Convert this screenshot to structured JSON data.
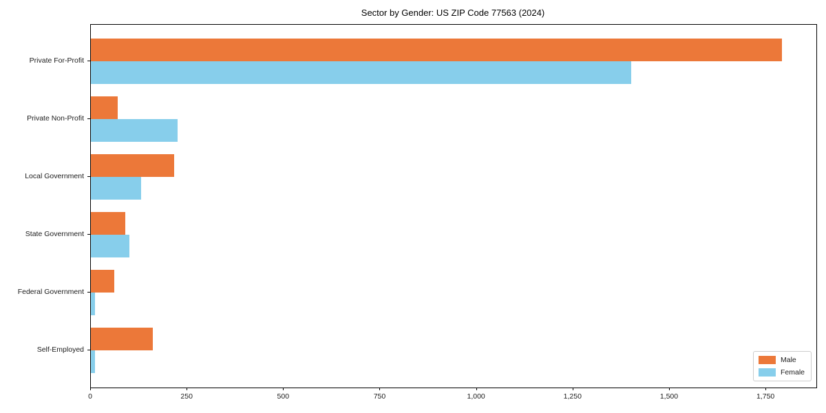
{
  "chart_data": {
    "type": "bar",
    "orientation": "horizontal",
    "title": "Sector by Gender: US ZIP Code 77563 (2024)",
    "categories": [
      "Private For-Profit",
      "Private Non-Profit",
      "Local Government",
      "State Government",
      "Federal Government",
      "Self-Employed"
    ],
    "series": [
      {
        "name": "Male",
        "color": "#ec7839",
        "values": [
          1790,
          70,
          215,
          90,
          60,
          160
        ]
      },
      {
        "name": "Female",
        "color": "#87ceeb",
        "values": [
          1400,
          225,
          130,
          100,
          10,
          10
        ]
      }
    ],
    "xlim": [
      0,
      1880
    ],
    "x_ticks": [
      0,
      250,
      500,
      750,
      1000,
      1250,
      1500,
      1750
    ],
    "x_tick_labels": [
      "0",
      "250",
      "500",
      "750",
      "1,000",
      "1,250",
      "1,500",
      "1,750"
    ],
    "xlabel": "",
    "ylabel": "",
    "grid": false,
    "background": "#ffffff",
    "axis_color": "#000000",
    "legend": {
      "position": "lower-right",
      "items": [
        "Male",
        "Female"
      ]
    }
  }
}
